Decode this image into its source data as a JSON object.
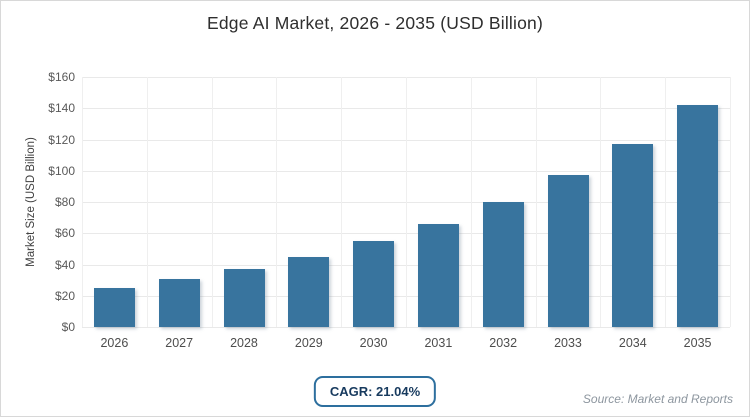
{
  "page": {
    "title": "Edge AI Market, 2026 - 2035 (USD Billion)",
    "cagr_label": "CAGR: 21.04%",
    "source_note": "Source: Market and Reports"
  },
  "chart_data": {
    "type": "bar",
    "title": "Edge AI Market, 2026 - 2035 (USD Billion)",
    "series_name": "Market Size (USD Billion)",
    "categories": [
      "2026",
      "2027",
      "2028",
      "2029",
      "2030",
      "2031",
      "2032",
      "2033",
      "2034",
      "2035"
    ],
    "values": [
      25,
      31,
      37,
      45,
      55,
      66,
      80,
      97,
      117,
      142
    ],
    "values_note": "estimated from bar heights; no data labels shown",
    "xlabel": "",
    "ylabel": "Market Size (USD Billion)",
    "ylim": [
      0,
      160
    ],
    "ytick_step": 20,
    "ytick_labels": [
      "$0",
      "$20",
      "$40",
      "$60",
      "$80",
      "$100",
      "$120",
      "$140",
      "$160"
    ],
    "grid": true,
    "legend": false,
    "annotations": [
      "CAGR: 21.04%"
    ],
    "source": "Source: Market and Reports",
    "colors": {
      "bar_fill": "#38749e",
      "gridline": "#e9e9e9",
      "title_text": "#2e2e2e",
      "tick_text": "#595959",
      "badge_border": "#2d6f9e",
      "badge_text": "#173a5e",
      "source_text": "#8d969f",
      "page_border": "#d8d8d8",
      "background": "#ffffff"
    }
  }
}
